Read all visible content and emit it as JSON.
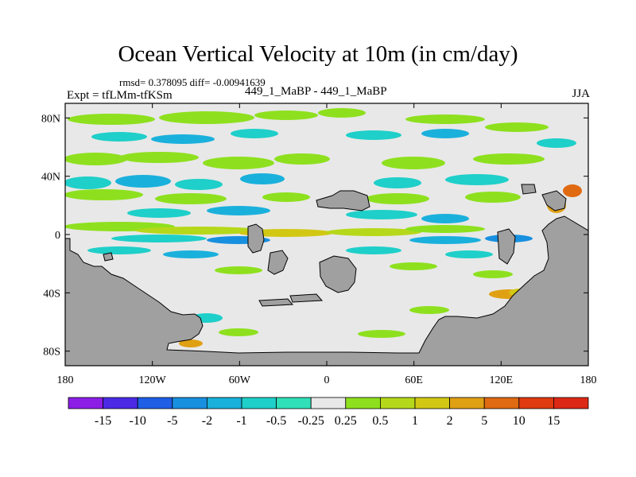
{
  "header": {
    "title": "Ocean Vertical Velocity at 10m (in cm/day)",
    "stats": "rmsd= 0.378095 diff= -0.00941639",
    "experiment": "Expt = tfLMm-tfKSm",
    "case_ids": "449_1_MaBP - 449_1_MaBP",
    "season": "JJA"
  },
  "chart_data": {
    "type": "heatmap",
    "title": "Ocean Vertical Velocity at 10m (in cm/day)",
    "xlabel": "",
    "ylabel": "",
    "x_ticks": [
      "180",
      "120W",
      "60W",
      "0",
      "60E",
      "120E",
      "180"
    ],
    "x_tick_values": [
      -180,
      -120,
      -60,
      0,
      60,
      120,
      180
    ],
    "y_ticks": [
      "80N",
      "40N",
      "0",
      "40S",
      "80S"
    ],
    "y_tick_values": [
      80,
      40,
      0,
      -40,
      -80
    ],
    "xlim": [
      -180,
      180
    ],
    "ylim": [
      -90,
      90
    ],
    "colorbar": {
      "labels": [
        "-15",
        "-10",
        "-5",
        "-2",
        "-1",
        "-0.5",
        "-0.25",
        "0.25",
        "0.5",
        "1",
        "2",
        "5",
        "10",
        "15"
      ],
      "colors": [
        "#8c1ee6",
        "#4b2ae6",
        "#1e5fe6",
        "#1890e0",
        "#1ab0dc",
        "#1fcfc9",
        "#2fe0b8",
        "#e8e8e8",
        "#8ee01e",
        "#b6d81a",
        "#d2c814",
        "#e0a014",
        "#e06a12",
        "#e03a10",
        "#dc2814"
      ]
    },
    "land_color": "#a0a0a0",
    "background_color": "#e8e8e8"
  }
}
